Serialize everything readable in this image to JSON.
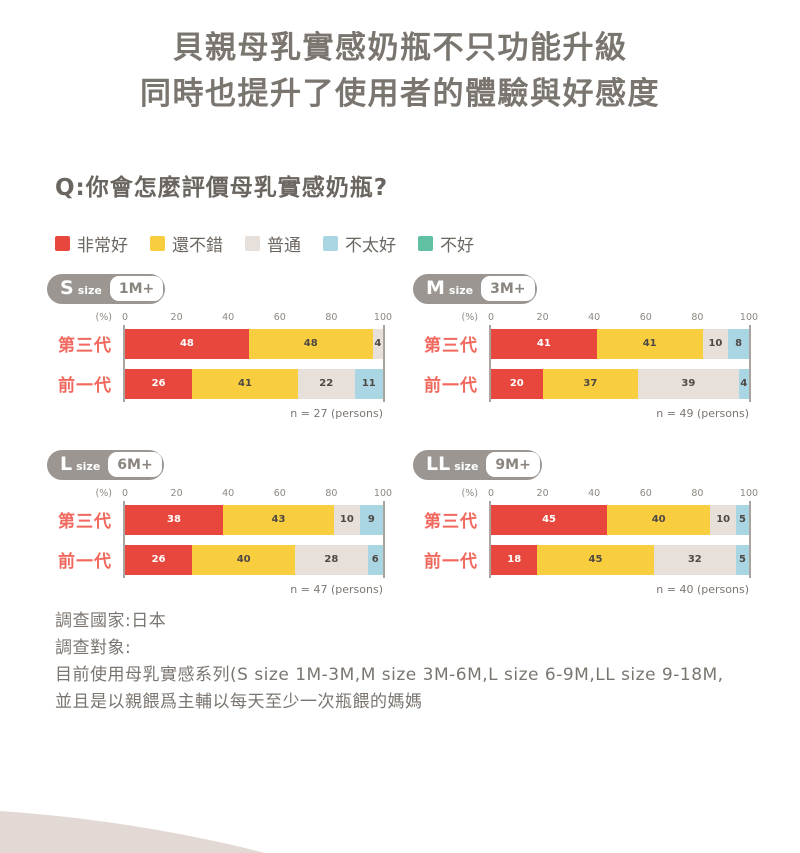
{
  "title": {
    "line1": "貝親母乳實感奶瓶不只功能升級",
    "line2": "同時也提升了使用者的體驗與好感度"
  },
  "question": "Q:你會怎麼評價母乳實感奶瓶?",
  "legend": [
    {
      "label": "非常好",
      "color": "#e8473d"
    },
    {
      "label": "還不錯",
      "color": "#f8cd3e"
    },
    {
      "label": "普通",
      "color": "#e6dfda"
    },
    {
      "label": "不太好",
      "color": "#aad6e4"
    },
    {
      "label": "不好",
      "color": "#5fc0a4"
    }
  ],
  "axis": {
    "unit": "(%)",
    "ticks": [
      "0",
      "20",
      "40",
      "60",
      "80",
      "100"
    ]
  },
  "chart_data": [
    {
      "type": "bar",
      "title": "S size 1M+",
      "badge": {
        "size": "S",
        "size_word": "size",
        "age": "1M+"
      },
      "n_label": "n = 27 (persons)",
      "categories": [
        "第三代",
        "前一代"
      ],
      "series": [
        {
          "name": "非常好",
          "values": [
            48,
            26
          ]
        },
        {
          "name": "還不錯",
          "values": [
            48,
            41
          ]
        },
        {
          "name": "普通",
          "values": [
            4,
            22
          ]
        },
        {
          "name": "不太好",
          "values": [
            0,
            11
          ]
        },
        {
          "name": "不好",
          "values": [
            0,
            0
          ]
        }
      ],
      "xlabel": "(%)",
      "xlim": [
        0,
        100
      ],
      "legend_position": "top",
      "grid": false
    },
    {
      "type": "bar",
      "title": "M size 3M+",
      "badge": {
        "size": "M",
        "size_word": "size",
        "age": "3M+"
      },
      "n_label": "n = 49 (persons)",
      "categories": [
        "第三代",
        "前一代"
      ],
      "series": [
        {
          "name": "非常好",
          "values": [
            41,
            20
          ]
        },
        {
          "name": "還不錯",
          "values": [
            41,
            37
          ]
        },
        {
          "name": "普通",
          "values": [
            10,
            39
          ]
        },
        {
          "name": "不太好",
          "values": [
            8,
            4
          ]
        },
        {
          "name": "不好",
          "values": [
            0,
            0
          ]
        }
      ],
      "xlabel": "(%)",
      "xlim": [
        0,
        100
      ],
      "legend_position": "top",
      "grid": false
    },
    {
      "type": "bar",
      "title": "L size 6M+",
      "badge": {
        "size": "L",
        "size_word": "size",
        "age": "6M+"
      },
      "n_label": "n = 47 (persons)",
      "categories": [
        "第三代",
        "前一代"
      ],
      "series": [
        {
          "name": "非常好",
          "values": [
            38,
            26
          ]
        },
        {
          "name": "還不錯",
          "values": [
            43,
            40
          ]
        },
        {
          "name": "普通",
          "values": [
            10,
            28
          ]
        },
        {
          "name": "不太好",
          "values": [
            9,
            6
          ]
        },
        {
          "name": "不好",
          "values": [
            0,
            0
          ]
        }
      ],
      "xlabel": "(%)",
      "xlim": [
        0,
        100
      ],
      "legend_position": "top",
      "grid": false
    },
    {
      "type": "bar",
      "title": "LL size 9M+",
      "badge": {
        "size": "LL",
        "size_word": "size",
        "age": "9M+"
      },
      "n_label": "n = 40 (persons)",
      "categories": [
        "第三代",
        "前一代"
      ],
      "series": [
        {
          "name": "非常好",
          "values": [
            45,
            18
          ]
        },
        {
          "name": "還不錯",
          "values": [
            40,
            45
          ]
        },
        {
          "name": "普通",
          "values": [
            10,
            32
          ]
        },
        {
          "name": "不太好",
          "values": [
            5,
            5
          ]
        },
        {
          "name": "不好",
          "values": [
            0,
            0
          ]
        }
      ],
      "xlabel": "(%)",
      "xlim": [
        0,
        100
      ],
      "legend_position": "top",
      "grid": false
    }
  ],
  "footer": {
    "line1": "調查國家:日本",
    "line2": "調查對象:",
    "line3": "目前使用母乳實感系列(S size 1M-3M,M size 3M-6M,L size 6-9M,LL size 9-18M,",
    "line4": "並且是以親餵爲主輔以每天至少一次瓶餵的媽媽"
  },
  "colors": {
    "title_text": "#7b7570",
    "category_label": "#f1695e",
    "badge_gray": "#9b9691",
    "axis_line": "#aaa49e",
    "shape_beige": "#e2d9d5"
  }
}
